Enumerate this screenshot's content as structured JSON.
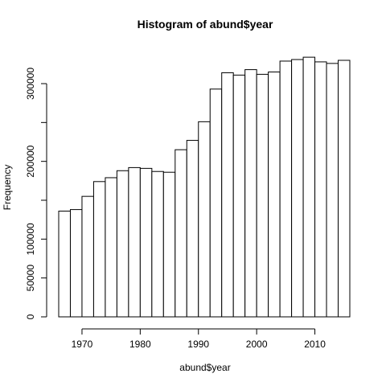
{
  "chart_data": {
    "type": "bar",
    "title": "Histogram of abund$year",
    "xlabel": "abund$year",
    "ylabel": "Frequency",
    "bin_width": 2,
    "bins": [
      {
        "start": 1966,
        "end": 1968,
        "value": 136000
      },
      {
        "start": 1968,
        "end": 1970,
        "value": 138000
      },
      {
        "start": 1970,
        "end": 1972,
        "value": 155000
      },
      {
        "start": 1972,
        "end": 1974,
        "value": 174000
      },
      {
        "start": 1974,
        "end": 1976,
        "value": 179000
      },
      {
        "start": 1976,
        "end": 1978,
        "value": 188000
      },
      {
        "start": 1978,
        "end": 1980,
        "value": 192000
      },
      {
        "start": 1980,
        "end": 1982,
        "value": 191000
      },
      {
        "start": 1982,
        "end": 1984,
        "value": 187000
      },
      {
        "start": 1984,
        "end": 1986,
        "value": 186000
      },
      {
        "start": 1986,
        "end": 1988,
        "value": 215000
      },
      {
        "start": 1988,
        "end": 1990,
        "value": 227000
      },
      {
        "start": 1990,
        "end": 1992,
        "value": 251000
      },
      {
        "start": 1992,
        "end": 1994,
        "value": 293000
      },
      {
        "start": 1994,
        "end": 1996,
        "value": 314000
      },
      {
        "start": 1996,
        "end": 1998,
        "value": 311000
      },
      {
        "start": 1998,
        "end": 2000,
        "value": 318000
      },
      {
        "start": 2000,
        "end": 2002,
        "value": 312000
      },
      {
        "start": 2002,
        "end": 2004,
        "value": 315000
      },
      {
        "start": 2004,
        "end": 2006,
        "value": 329000
      },
      {
        "start": 2006,
        "end": 2008,
        "value": 331000
      },
      {
        "start": 2008,
        "end": 2010,
        "value": 334000
      },
      {
        "start": 2010,
        "end": 2012,
        "value": 328000
      },
      {
        "start": 2012,
        "end": 2014,
        "value": 326000
      },
      {
        "start": 2014,
        "end": 2016,
        "value": 330000
      }
    ],
    "xlim": [
      1966,
      2016
    ],
    "ylim": [
      0,
      340000
    ],
    "x_ticks": [
      {
        "value": 1970,
        "label": "1970"
      },
      {
        "value": 1980,
        "label": "1980"
      },
      {
        "value": 1990,
        "label": "1990"
      },
      {
        "value": 2000,
        "label": "2000"
      },
      {
        "value": 2010,
        "label": "2010"
      }
    ],
    "y_ticks": [
      {
        "value": 0,
        "label": "0"
      },
      {
        "value": 50000,
        "label": "50000"
      },
      {
        "value": 100000,
        "label": "100000"
      },
      {
        "value": 150000,
        "label": ""
      },
      {
        "value": 200000,
        "label": "200000"
      },
      {
        "value": 250000,
        "label": ""
      },
      {
        "value": 300000,
        "label": "300000"
      }
    ],
    "grid": false,
    "legend": "none",
    "colors": {
      "bar_fill": "#ffffff",
      "bar_stroke": "#000000"
    }
  }
}
